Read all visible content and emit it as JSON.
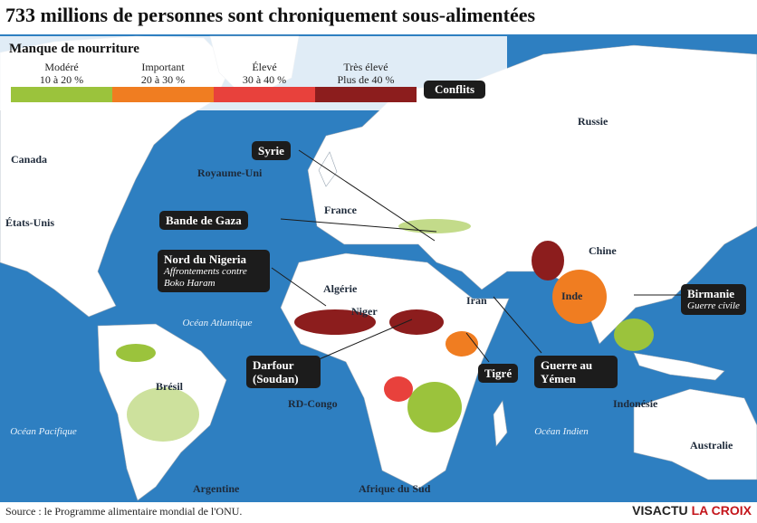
{
  "header": {
    "title": "733 millions de personnes sont chroniquement sous-alimentées"
  },
  "legend": {
    "title": "Manque de nourriture",
    "items": [
      {
        "label": "Modéré",
        "range": "10 à 20 %",
        "color": "#9bc33c"
      },
      {
        "label": "Important",
        "range": "20 à 30 %",
        "color": "#f07d21"
      },
      {
        "label": "Élevé",
        "range": "30 à 40 %",
        "color": "#e8413c"
      },
      {
        "label": "Très élevé",
        "range": "Plus de 40 %",
        "color": "#8c1d1d"
      }
    ],
    "conflicts": "Conflits"
  },
  "places": [
    "Russie",
    "Canada",
    "Royaume-Uni",
    "États-Unis",
    "France",
    "Chine",
    "Algérie",
    "Niger",
    "Iran",
    "Inde",
    "Brésil",
    "RD-Congo",
    "Indonésie",
    "Australie",
    "Argentine",
    "Afrique du Sud"
  ],
  "oceans": [
    "Océan Atlantique",
    "Océan Pacifique",
    "Océan Indien"
  ],
  "conflicts": [
    {
      "title": "Syrie"
    },
    {
      "title": "Bande de Gaza"
    },
    {
      "title": "Nord du Nigeria",
      "subtitle": "Affrontements contre Boko Haram"
    },
    {
      "title": "Darfour (Soudan)"
    },
    {
      "title": "Tigré"
    },
    {
      "title": "Guerre au Yémen"
    },
    {
      "title": "Birmanie",
      "subtitle": "Guerre civile"
    }
  ],
  "footer": {
    "source": "Source : le Programme alimentaire mondial de l'ONU.",
    "brand_left": "VISACTU",
    "brand_right": "LA CROIX"
  }
}
